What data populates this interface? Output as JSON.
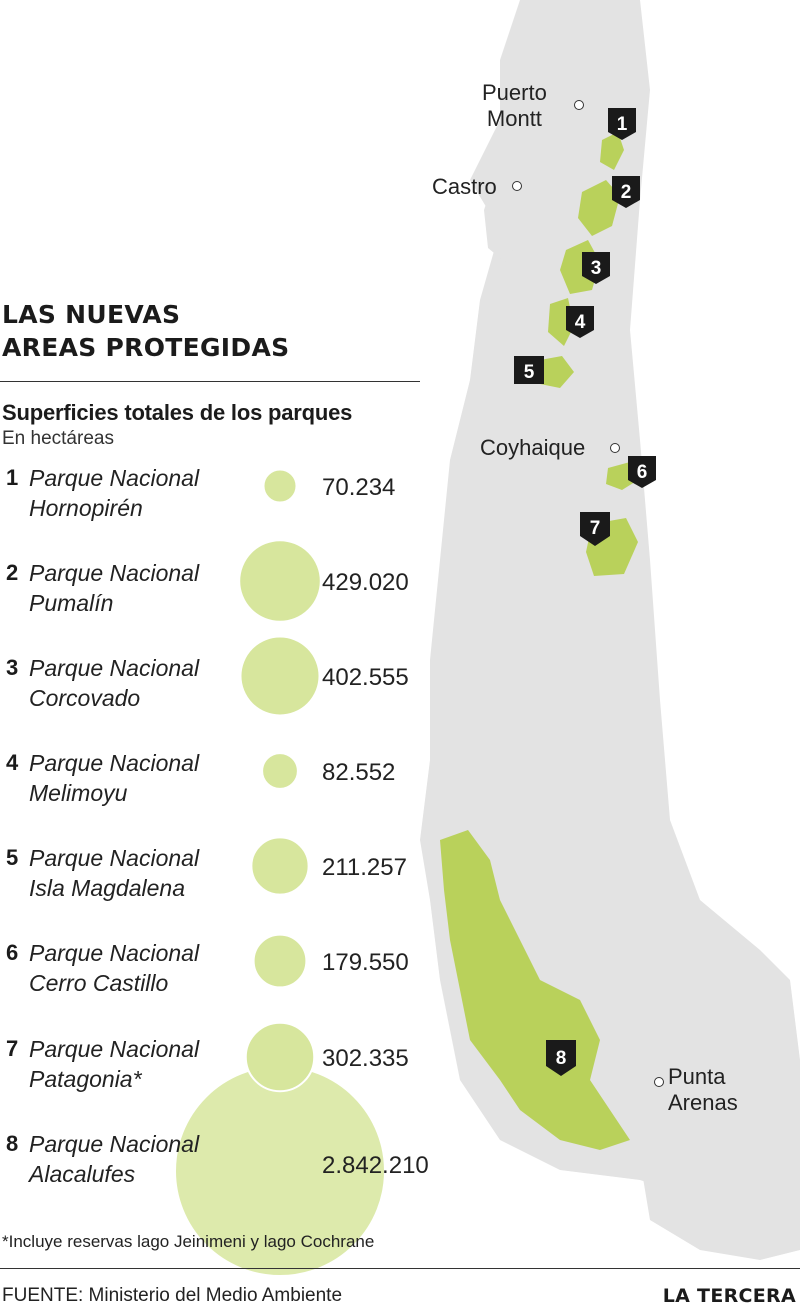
{
  "title_line1": "LAS NUEVAS",
  "title_line2": "AREAS PROTEGIDAS",
  "subtitle": "Superficies totales de los parques",
  "unit_label": "En hectáreas",
  "footnote": "*Incluye reservas lago Jeinimeni  y lago Cochrane",
  "source": "FUENTE: Ministerio del Medio Ambiente",
  "brand": "LA TERCERA",
  "colors": {
    "park_fill": "#b9d15b",
    "bubble_fill": "#d7e69d",
    "land": "#e3e3e3",
    "marker": "#1a1a1a"
  },
  "map": {
    "cities": [
      {
        "name": "Puerto\nMontt",
        "icon": "city-circle-icon"
      },
      {
        "name": "Castro",
        "icon": "city-circle-icon"
      },
      {
        "name": "Coyhaique",
        "icon": "city-circle-icon"
      },
      {
        "name": "Punta\nArenas",
        "icon": "city-circle-icon"
      }
    ],
    "park_markers": [
      "1",
      "2",
      "3",
      "4",
      "5",
      "6",
      "7",
      "8"
    ]
  },
  "chart_data": {
    "type": "bubble",
    "title": "LAS NUEVAS AREAS PROTEGIDAS",
    "subtitle": "Superficies totales de los parques",
    "unit": "En hectáreas",
    "parks": [
      {
        "num": "1",
        "name_line1": "Parque Nacional",
        "name_line2": "Hornopirén",
        "value": 70234,
        "value_label": "70.234"
      },
      {
        "num": "2",
        "name_line1": "Parque Nacional",
        "name_line2": "Pumalín",
        "value": 429020,
        "value_label": "429.020"
      },
      {
        "num": "3",
        "name_line1": "Parque Nacional",
        "name_line2": "Corcovado",
        "value": 402555,
        "value_label": "402.555"
      },
      {
        "num": "4",
        "name_line1": "Parque Nacional",
        "name_line2": "Melimoyu",
        "value": 82552,
        "value_label": "82.552"
      },
      {
        "num": "5",
        "name_line1": "Parque Nacional",
        "name_line2": "Isla Magdalena",
        "value": 211257,
        "value_label": "211.257"
      },
      {
        "num": "6",
        "name_line1": "Parque Nacional",
        "name_line2": "Cerro Castillo",
        "value": 179550,
        "value_label": "179.550"
      },
      {
        "num": "7",
        "name_line1": "Parque Nacional",
        "name_line2": "Patagonia*",
        "value": 302335,
        "value_label": "302.335"
      },
      {
        "num": "8",
        "name_line1": "Parque Nacional",
        "name_line2": "Alacalufes",
        "value": 2842210,
        "value_label": "2.842.210"
      }
    ]
  }
}
